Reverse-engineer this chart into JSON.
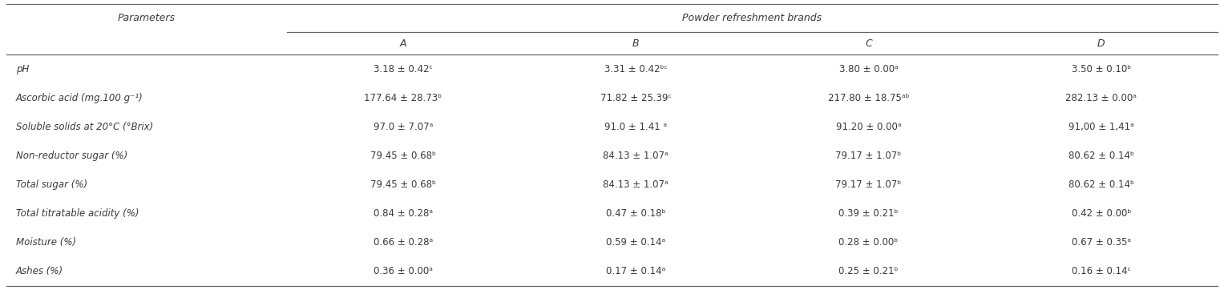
{
  "col_header_top": "Powder refreshment brands",
  "col_header_brands": [
    "A",
    "B",
    "C",
    "D"
  ],
  "row_header": "Parameters",
  "parameters": [
    "pH",
    "Ascorbic acid (mg.100 g⁻¹)",
    "Soluble solids at 20°C (°Brix)",
    "Non-reductor sugar (%)",
    "Total sugar (%)",
    "Total titratable acidity (%)",
    "Moisture (%)",
    "Ashes (%)"
  ],
  "data": [
    [
      "3.18 ± 0.42ᶜ",
      "3.31 ± 0.42ᵇᶜ",
      "3.80 ± 0.00ᵃ",
      "3.50 ± 0.10ᵇ"
    ],
    [
      "177.64 ± 28.73ᵇ",
      "71.82 ± 25.39ᶜ",
      "217.80 ± 18.75ᵃᵇ",
      "282.13 ± 0.00ᵃ"
    ],
    [
      "97.0 ± 7.07ᵃ",
      "91.0 ± 1.41 ᵃ",
      "91.20 ± 0.00ᵃ",
      "91,00 ± 1,41ᵃ"
    ],
    [
      "79.45 ± 0.68ᵇ",
      "84.13 ± 1.07ᵃ",
      "79.17 ± 1.07ᵇ",
      "80.62 ± 0.14ᵇ"
    ],
    [
      "79.45 ± 0.68ᵇ",
      "84.13 ± 1.07ᵃ",
      "79.17 ± 1.07ᵇ",
      "80.62 ± 0.14ᵇ"
    ],
    [
      "0.84 ± 0.28ᵃ",
      "0.47 ± 0.18ᵇ",
      "0.39 ± 0.21ᵇ",
      "0.42 ± 0.00ᵇ"
    ],
    [
      "0.66 ± 0.28ᵃ",
      "0.59 ± 0.14ᵃ",
      "0.28 ± 0.00ᵇ",
      "0.67 ± 0.35ᵃ"
    ],
    [
      "0.36 ± 0.00ᵃ",
      "0.17 ± 0.14ᵃ",
      "0.25 ± 0.21ᵇ",
      "0.16 ± 0.14ᶜ"
    ]
  ],
  "bg_color": "#ffffff",
  "text_color": "#3a3a3a",
  "line_color": "#666666",
  "font_size": 8.5,
  "header_font_size": 9.0,
  "fig_width": 15.22,
  "fig_height": 3.62,
  "dpi": 100
}
